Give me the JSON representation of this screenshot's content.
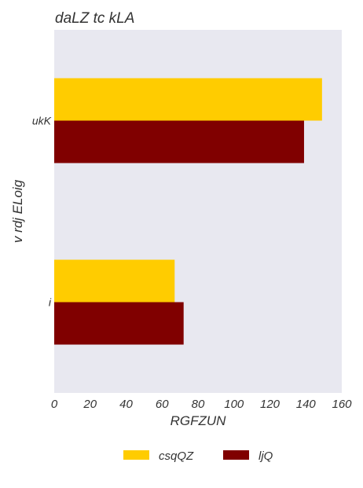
{
  "chart_data": {
    "type": "bar",
    "orientation": "horizontal",
    "title": "daLZ tc kLA",
    "xlabel": "RGFZUN",
    "ylabel": "v rdj ELoig",
    "categories": [
      "ukK",
      "i"
    ],
    "series": [
      {
        "name": "csqQZ",
        "values": [
          149,
          67
        ],
        "color": "#FFCC00"
      },
      {
        "name": "ljQ",
        "values": [
          139,
          72
        ],
        "color": "#800000"
      }
    ],
    "xlim": [
      0,
      160
    ],
    "x_ticks": [
      "0",
      "20",
      "40",
      "60",
      "80",
      "100",
      "120",
      "140",
      "160"
    ],
    "grid": false,
    "plot_background": "#E8E8F0",
    "legend_position": "bottom-center"
  }
}
